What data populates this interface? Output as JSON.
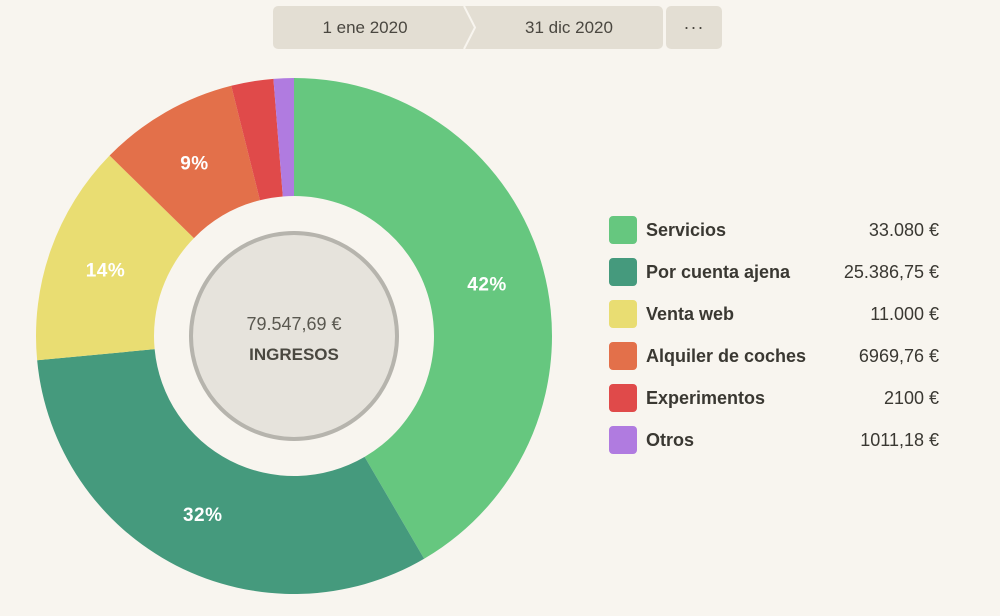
{
  "date_range": {
    "start": "1 ene 2020",
    "end": "31 dic 2020",
    "more": "···"
  },
  "colors": {
    "background": "#f8f5ef",
    "segment_button": "#e3ded3",
    "center_fill": "#e6e3dc",
    "center_ring": "#b6b4ad"
  },
  "chart_data": {
    "type": "pie",
    "donut": true,
    "start_angle_deg": 0,
    "direction": "clockwise",
    "center": {
      "value": "79.547,69 €",
      "caption": "INGRESOS"
    },
    "slices": [
      {
        "name": "Servicios",
        "value": 33080.0,
        "display": "33.080 €",
        "percent_label": "42%",
        "color": "#66c77f"
      },
      {
        "name": "Por cuenta ajena",
        "value": 25386.75,
        "display": "25.386,75 €",
        "percent_label": "32%",
        "color": "#459a7d"
      },
      {
        "name": "Venta web",
        "value": 11000.0,
        "display": "11.000 €",
        "percent_label": "14%",
        "color": "#e9dd72"
      },
      {
        "name": "Alquiler de coches",
        "value": 6969.76,
        "display": "6969,76 €",
        "percent_label": "9%",
        "color": "#e3704a"
      },
      {
        "name": "Experimentos",
        "value": 2100.0,
        "display": "2100 €",
        "percent_label": "",
        "color": "#e04a4a"
      },
      {
        "name": "Otros",
        "value": 1011.18,
        "display": "1011,18 €",
        "percent_label": "",
        "color": "#b07be0"
      }
    ]
  }
}
